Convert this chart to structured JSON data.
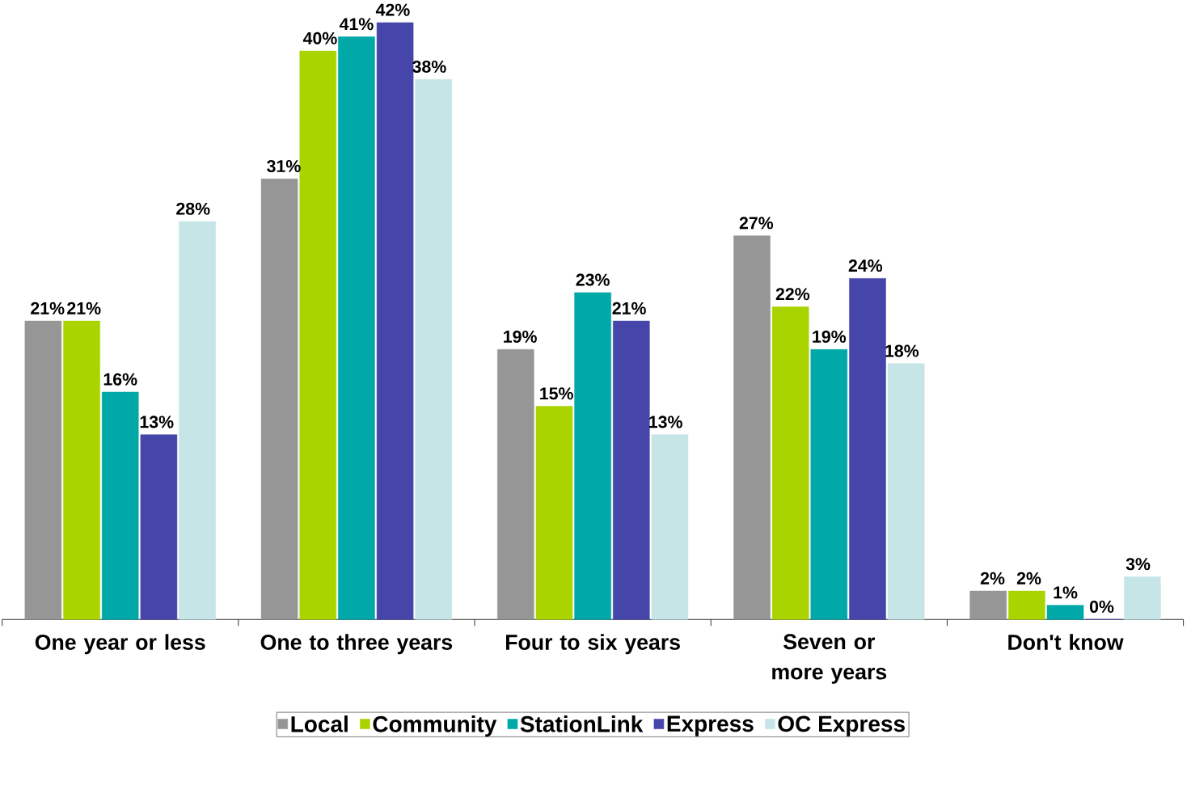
{
  "chart_data": {
    "type": "bar",
    "categories": [
      "One year or less",
      "One to three years",
      "Four to six years",
      "Seven or more years",
      "Don't know"
    ],
    "legend": "bottom",
    "series": [
      {
        "name": "Local",
        "color": "#969696",
        "values": [
          21,
          31,
          19,
          27,
          2
        ],
        "value_labels": [
          "21%",
          "31%",
          "19%",
          "27%",
          "2%"
        ]
      },
      {
        "name": "Community",
        "color": "#aad400",
        "values": [
          21,
          40,
          15,
          22,
          2
        ],
        "value_labels": [
          "21%",
          "40%",
          "15%",
          "22%",
          "2%"
        ]
      },
      {
        "name": "StationLink",
        "color": "#00a8a8",
        "values": [
          16,
          41,
          23,
          19,
          1
        ],
        "value_labels": [
          "16%",
          "41%",
          "23%",
          "19%",
          "1%"
        ]
      },
      {
        "name": "Express",
        "color": "#4646aa",
        "values": [
          13,
          42,
          21,
          24,
          0
        ],
        "value_labels": [
          "13%",
          "42%",
          "21%",
          "24%",
          "0%"
        ]
      },
      {
        "name": "OC Express",
        "color": "#c5e5e7",
        "values": [
          28,
          38,
          13,
          18,
          3
        ],
        "value_labels": [
          "28%",
          "38%",
          "13%",
          "18%",
          "3%"
        ]
      }
    ]
  }
}
